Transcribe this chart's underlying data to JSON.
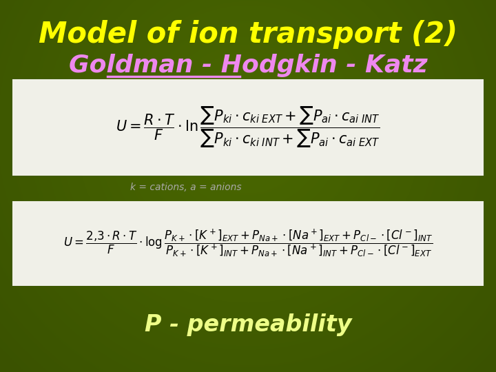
{
  "title": "Model of ion transport (2)",
  "subtitle": "Goldman - Hodgkin - Katz",
  "title_color": "#FFFF00",
  "subtitle_color": "#EE88EE",
  "background_color": "#4A6800",
  "note": "k = cations, a = anions",
  "note_color": "#AAAAAA",
  "permeability_text": "P - permeability",
  "permeability_color": "#EEFF88",
  "formula_box_color": "#F0F0E8",
  "formula_text_color": "#000000",
  "figsize": [
    7.2,
    5.4
  ],
  "dpi": 100
}
